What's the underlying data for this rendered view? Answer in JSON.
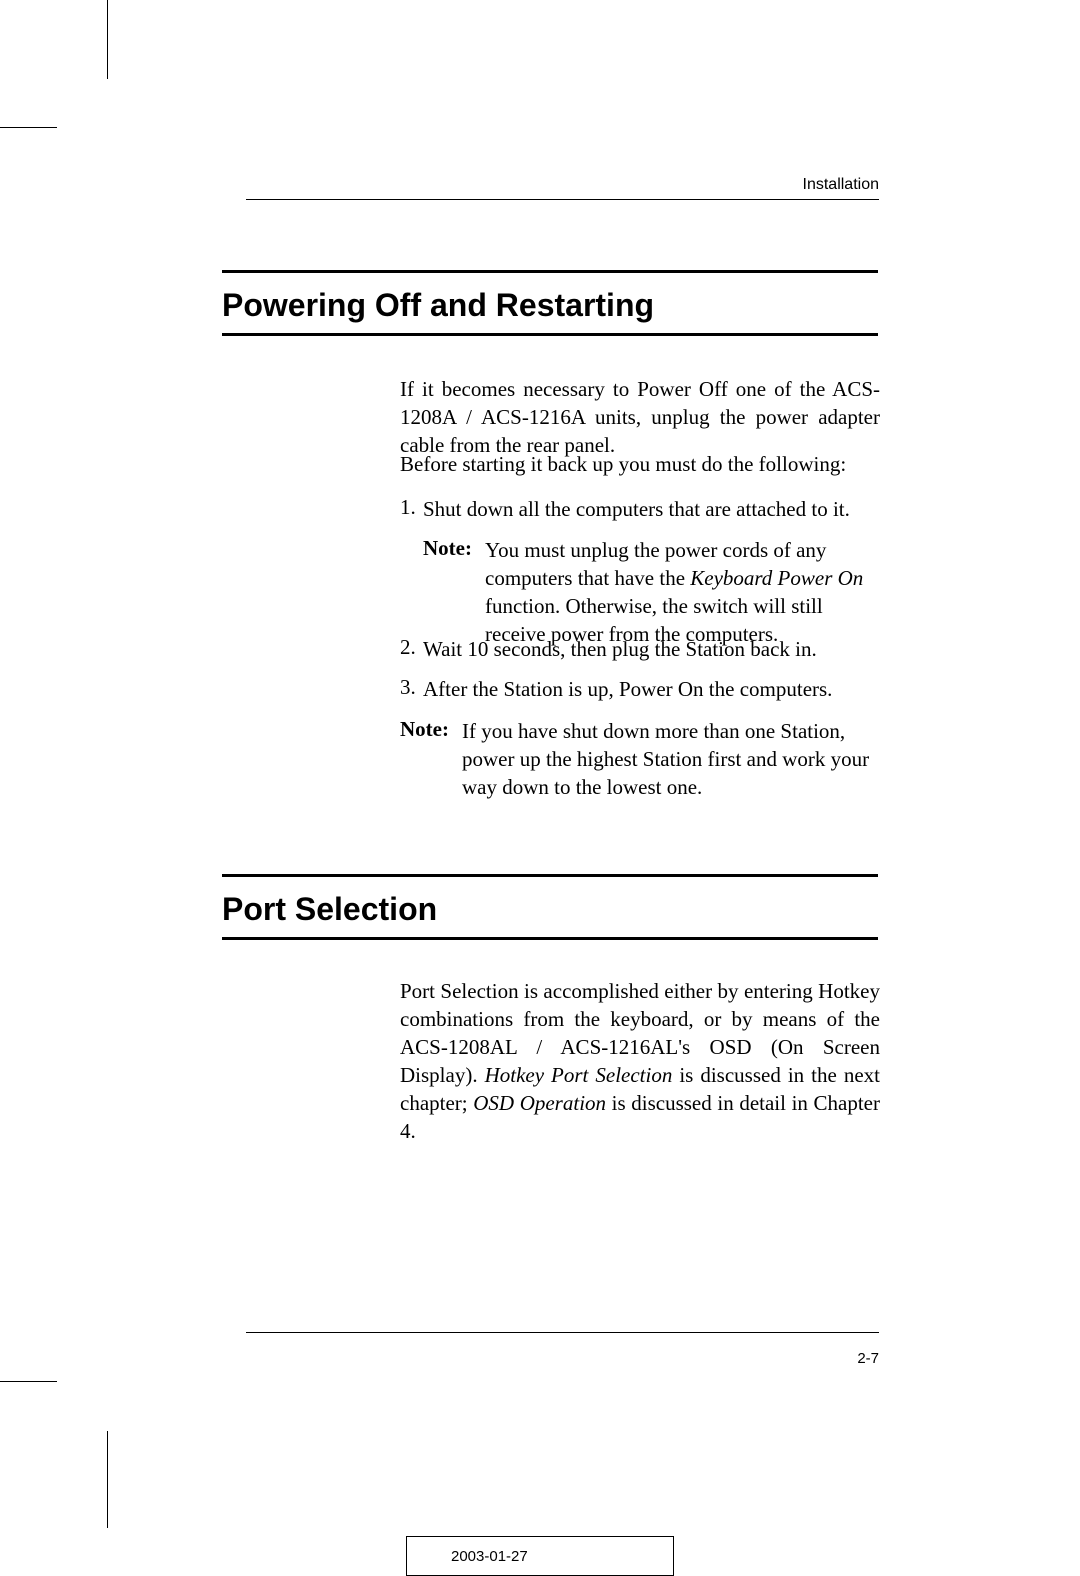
{
  "typography": {
    "body_font": "Times New Roman",
    "heading_font": "Arial",
    "body_fontsize_pt": 16,
    "heading_fontsize_pt": 24,
    "colors": {
      "text": "#000000",
      "background": "#ffffff",
      "rule": "#000000"
    }
  },
  "header": {
    "chapter_label": "Installation"
  },
  "section1": {
    "heading": "Powering Off and Restarting",
    "intro_para": "If it becomes necessary to Power Off one of the ACS-1208A / ACS-1216A units, unplug the power adapter cable from the rear panel.",
    "lead_in": "Before starting it back up you must do the following:",
    "steps": {
      "s1": {
        "num": "1.",
        "text": "Shut down all the computers that are attached to it."
      },
      "s2": {
        "num": "2.",
        "text": "Wait 10 seconds, then plug the Station back in."
      },
      "s3": {
        "num": "3.",
        "text": "After the Station is up, Power On the computers."
      }
    },
    "note1": {
      "label": "Note:",
      "pre": "You must unplug the power cords of any computers that have the ",
      "italic": "Keyboard Power On",
      "post": " function. Otherwise, the switch will still receive power from the computers."
    },
    "note2": {
      "label": "Note:",
      "text": "If you have shut down more than one Station, power up the highest Station first and work your way down to the lowest one."
    }
  },
  "section2": {
    "heading": "Port Selection",
    "para": {
      "pre": "Port Selection is accomplished either by entering Hotkey combinations from the keyboard, or by means of the ACS-1208AL / ACS-1216AL's OSD (On Screen Display). ",
      "italic1": "Hotkey Port Selection",
      "mid": " is discussed in the next chapter; ",
      "italic2": "OSD Operation",
      "post": " is discussed in detail in Chapter 4."
    }
  },
  "footer": {
    "page_number": "2-7",
    "date": "2003-01-27"
  }
}
